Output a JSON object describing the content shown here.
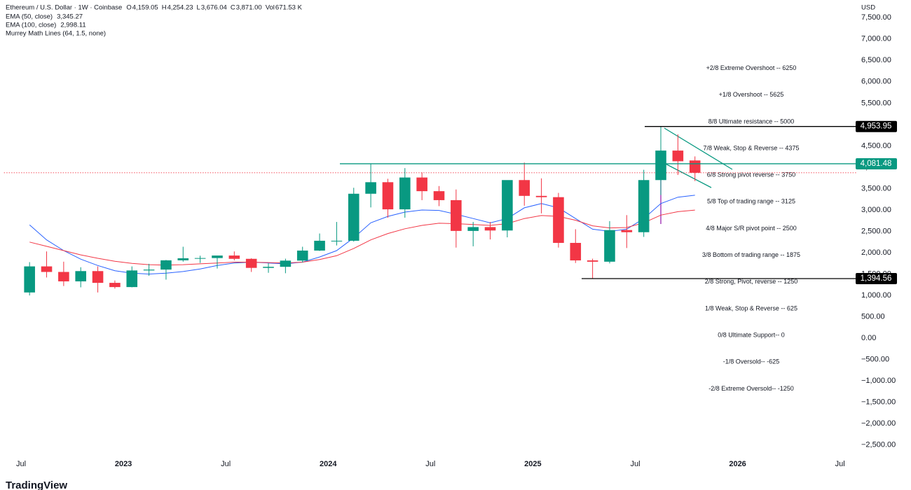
{
  "header": {
    "symbol": "Ethereum / U.S. Dollar · 1W · Coinbase",
    "o_label": "O",
    "o": "4,159.05",
    "h_label": "H",
    "h": "4,254.23",
    "l_label": "L",
    "l": "3,676.04",
    "c_label": "C",
    "c": "3,871.00",
    "vol_label": "Vol",
    "vol": "671.53 K"
  },
  "indicators": [
    {
      "name": "EMA (50, close)",
      "value": "3,345.27",
      "color": "#2962ff"
    },
    {
      "name": "EMA (100, close)",
      "value": "2,998.11",
      "color": "#f23645"
    },
    {
      "name": "Murrey Math Lines (64, 1.5, none)"
    }
  ],
  "brand": "TradingView",
  "chart_data": {
    "type": "candlestick",
    "currency": "USD",
    "x": [
      "2022-07",
      "2022-08",
      "2022-09",
      "2022-10",
      "2022-11",
      "2022-12",
      "2023-01",
      "2023-02",
      "2023-03",
      "2023-04",
      "2023-05",
      "2023-06",
      "2023-07",
      "2023-08",
      "2023-09",
      "2023-10",
      "2023-11",
      "2023-12",
      "2024-01",
      "2024-02",
      "2024-03",
      "2024-04",
      "2024-05",
      "2024-06",
      "2024-07",
      "2024-08",
      "2024-09",
      "2024-10",
      "2024-11",
      "2024-12",
      "2025-01",
      "2025-02",
      "2025-03",
      "2025-04",
      "2025-05",
      "2025-06",
      "2025-07",
      "2025-08",
      "2025-09",
      "2025-10"
    ],
    "open": [
      1070,
      1680,
      1550,
      1330,
      1570,
      1295,
      1196,
      1585,
      1605,
      1822,
      1870,
      1875,
      1934,
      1857,
      1645,
      1670,
      1815,
      2050,
      2280,
      2280,
      3380,
      3650,
      3015,
      3760,
      3440,
      3230,
      2510,
      2600,
      2520,
      3700,
      3330,
      3300,
      2230,
      1820,
      1790,
      2530,
      2480,
      3700,
      4390,
      4159
    ],
    "high": [
      1780,
      2030,
      1790,
      1660,
      1680,
      1350,
      1680,
      1740,
      1830,
      2140,
      1930,
      1930,
      2030,
      1870,
      1750,
      1860,
      2140,
      2450,
      2720,
      3520,
      4090,
      3730,
      3980,
      3880,
      3560,
      3480,
      2720,
      2720,
      3680,
      4110,
      3740,
      3400,
      2550,
      1860,
      2740,
      2880,
      3940,
      4950,
      4770,
      4254
    ],
    "low": [
      1000,
      1420,
      1220,
      1190,
      1070,
      1160,
      1190,
      1460,
      1370,
      1790,
      1760,
      1630,
      1820,
      1550,
      1530,
      1520,
      1770,
      2040,
      2170,
      2260,
      3060,
      2820,
      2820,
      3230,
      3090,
      2120,
      2150,
      2310,
      2360,
      3100,
      2920,
      2120,
      1760,
      1390,
      1750,
      2110,
      2370,
      3350,
      3820,
      3676
    ],
    "close": [
      1680,
      1550,
      1330,
      1570,
      1295,
      1196,
      1585,
      1605,
      1822,
      1870,
      1875,
      1934,
      1857,
      1645,
      1670,
      1815,
      2050,
      2280,
      2280,
      3380,
      3650,
      3015,
      3760,
      3440,
      3230,
      2510,
      2600,
      2520,
      3700,
      3330,
      3300,
      2230,
      1820,
      1790,
      2530,
      2480,
      3700,
      4390,
      4140,
      3871
    ],
    "up_color": "#089981",
    "down_color": "#f23645",
    "series": [
      {
        "name": "EMA (50, close)",
        "color": "#2962ff",
        "values": [
          2650,
          2300,
          2050,
          1850,
          1700,
          1580,
          1520,
          1500,
          1520,
          1560,
          1620,
          1700,
          1760,
          1780,
          1760,
          1740,
          1780,
          1900,
          2050,
          2350,
          2700,
          2850,
          2950,
          3000,
          2990,
          2900,
          2800,
          2700,
          2800,
          3050,
          3150,
          3050,
          2800,
          2550,
          2500,
          2550,
          2800,
          3150,
          3300,
          3345
        ]
      },
      {
        "name": "EMA (100, close)",
        "color": "#f23645",
        "values": [
          2250,
          2150,
          2050,
          1950,
          1870,
          1800,
          1750,
          1720,
          1710,
          1720,
          1740,
          1760,
          1780,
          1780,
          1770,
          1760,
          1780,
          1840,
          1930,
          2100,
          2300,
          2450,
          2560,
          2640,
          2690,
          2680,
          2660,
          2640,
          2680,
          2800,
          2870,
          2850,
          2760,
          2630,
          2580,
          2590,
          2700,
          2880,
          2960,
          2998
        ]
      }
    ],
    "last_price": 3871,
    "murrey": [
      {
        "text": "+2/8 Extreme Overshoot --  6250",
        "value": 6250,
        "color": "#e8615b"
      },
      {
        "text": "+1/8 Overshoot --  5625",
        "value": 5625,
        "color": "#e8615b"
      },
      {
        "text": "8/8 Ultimate resistance --  5000",
        "value": 5000,
        "color": "#26a9c4"
      },
      {
        "text": "7/8 Weak, Stop & Reverse --  4375",
        "value": 4375,
        "color": "#f0a22a"
      },
      {
        "text": "6/8 Strong pivot reverse --  3750",
        "value": 3750,
        "color": "#c848c8"
      },
      {
        "text": "5/8 Top of trading range --  3125",
        "value": 3125,
        "color": "#5aaa4a"
      },
      {
        "text": "4/8 Major S/R pivot point --  2500",
        "value": 2500,
        "color": "#2a8fd8"
      },
      {
        "text": "3/8 Bottom of trading range --  1875",
        "value": 1875,
        "color": "#5aaa4a"
      },
      {
        "text": "2/8 Strong, Pivot, reverse --  1250",
        "value": 1250,
        "color": "#c848c8"
      },
      {
        "text": "1/8 Weak, Stop & Reverse --  625",
        "value": 625,
        "color": "#f0a22a"
      },
      {
        "text": "0/8 Ultimate Support--  0",
        "value": 0,
        "color": "#26a9c4"
      },
      {
        "text": "-1/8 Oversold--  -625",
        "value": -625,
        "color": "#5aaa4a"
      },
      {
        "text": "-2/8 Extreme Oversold--  -1250",
        "value": -1250,
        "color": "#5aaa4a"
      }
    ],
    "levels": [
      {
        "value": 4953.95,
        "label": "4,953.95",
        "color": "#000000"
      },
      {
        "value": 4081.48,
        "label": "4,081.48",
        "color": "#089981"
      },
      {
        "value": 1394.56,
        "label": "1,394.56",
        "color": "#000000"
      }
    ],
    "xlim": [
      "2022-06",
      "2026-08"
    ],
    "xticks": [
      {
        "value": "2022-07",
        "label": "Jul"
      },
      {
        "value": "2023-01",
        "label": "2023"
      },
      {
        "value": "2023-07",
        "label": "Jul"
      },
      {
        "value": "2024-01",
        "label": "2024"
      },
      {
        "value": "2024-07",
        "label": "Jul"
      },
      {
        "value": "2025-01",
        "label": "2025"
      },
      {
        "value": "2025-07",
        "label": "Jul"
      },
      {
        "value": "2026-01",
        "label": "2026"
      },
      {
        "value": "2026-07",
        "label": "Jul"
      }
    ],
    "ylim": [
      -2750,
      7750
    ],
    "yticks": [
      {
        "value": 7500,
        "label": "7,500.00"
      },
      {
        "value": 7000,
        "label": "7,000.00"
      },
      {
        "value": 6500,
        "label": "6,500.00"
      },
      {
        "value": 6000,
        "label": "6,000.00"
      },
      {
        "value": 5500,
        "label": "5,500.00"
      },
      {
        "value": 5000,
        "label": "5,000.00"
      },
      {
        "value": 4500,
        "label": "4,500.00"
      },
      {
        "value": 4000,
        "label": "4,000.00"
      },
      {
        "value": 3500,
        "label": "3,500.00"
      },
      {
        "value": 3000,
        "label": "3,000.00"
      },
      {
        "value": 2500,
        "label": "2,500.00"
      },
      {
        "value": 2000,
        "label": "2,000.00"
      },
      {
        "value": 1500,
        "label": "1,500.00"
      },
      {
        "value": 1000,
        "label": "1,000.00"
      },
      {
        "value": 500,
        "label": "500.00"
      },
      {
        "value": 0,
        "label": "0.00"
      },
      {
        "value": -500,
        "label": "−500.00"
      },
      {
        "value": -1000,
        "label": "−1,000.00"
      },
      {
        "value": -1500,
        "label": "−1,500.00"
      },
      {
        "value": -2000,
        "label": "−2,000.00"
      },
      {
        "value": -2500,
        "label": "−2,500.00"
      }
    ],
    "grid": false
  }
}
